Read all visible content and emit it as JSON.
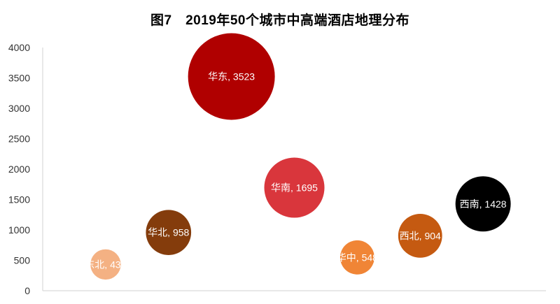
{
  "chart_data": {
    "type": "bubble",
    "title": "图7　2019年50个城市中高端酒店地理分布",
    "ylim": [
      0,
      4000
    ],
    "yticks": [
      0,
      500,
      1000,
      1500,
      2000,
      2500,
      3000,
      3500,
      4000
    ],
    "xlim": [
      0,
      8
    ],
    "grid": false,
    "legend": "none",
    "points": [
      {
        "label": "东北, 432",
        "region": "东北",
        "x": 1,
        "y": 432,
        "size": 432,
        "color": "#F4B183"
      },
      {
        "label": "华北, 958",
        "region": "华北",
        "x": 2,
        "y": 958,
        "size": 958,
        "color": "#843C0C"
      },
      {
        "label": "华东, 3523",
        "region": "华东",
        "x": 3,
        "y": 3523,
        "size": 3523,
        "color": "#B00000"
      },
      {
        "label": "华南, 1695",
        "region": "华南",
        "x": 4,
        "y": 1695,
        "size": 1695,
        "color": "#D9363C"
      },
      {
        "label": "华中, 548",
        "region": "华中",
        "x": 5,
        "y": 548,
        "size": 548,
        "color": "#F08536"
      },
      {
        "label": "西北, 904",
        "region": "西北",
        "x": 6,
        "y": 904,
        "size": 904,
        "color": "#C55A11"
      },
      {
        "label": "西南, 1428",
        "region": "西南",
        "x": 7,
        "y": 1428,
        "size": 1428,
        "color": "#000000"
      }
    ]
  }
}
